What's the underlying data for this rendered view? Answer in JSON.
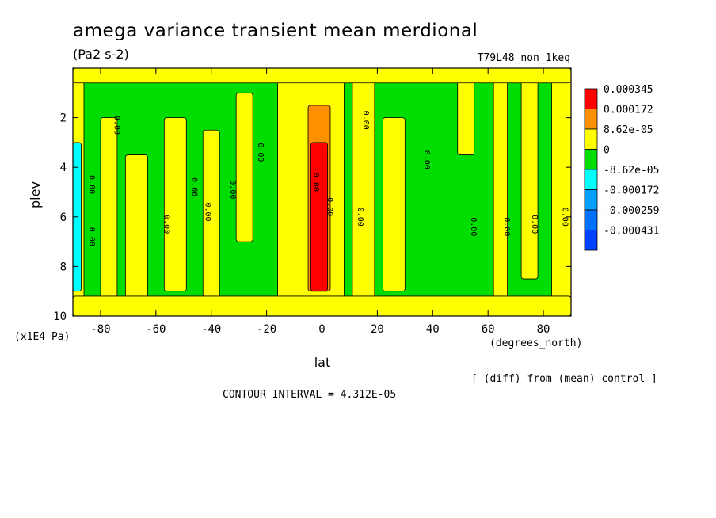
{
  "chart_data": {
    "type": "heatmap",
    "title": "amega variance transient mean merdional",
    "units": "(Pa2 s-2)",
    "run_label": "T79L48_non_1keq",
    "xlabel": "lat",
    "x_units": "(degrees_north)",
    "ylabel": "plev",
    "y_units": "(x1E4 Pa)",
    "xlim": [
      -90,
      90
    ],
    "ylim": [
      0,
      10
    ],
    "x_ticks": [
      "-80",
      "-60",
      "-40",
      "-20",
      "0",
      "20",
      "40",
      "60",
      "80"
    ],
    "x_tick_values": [
      -80,
      -60,
      -40,
      -20,
      0,
      20,
      40,
      60,
      80
    ],
    "y_ticks": [
      "2",
      "4",
      "6",
      "8",
      "10"
    ],
    "y_tick_values": [
      2,
      4,
      6,
      8,
      10
    ],
    "grid": false,
    "legend_position": "right",
    "colorbar": [
      {
        "label": "0.000345",
        "color": "#ff0000"
      },
      {
        "label": "0.000172",
        "color": "#ff9000"
      },
      {
        "label": "8.62e-05",
        "color": "#ffff00"
      },
      {
        "label": "0",
        "color": "#00dd00"
      },
      {
        "label": "-8.62e-05",
        "color": "#00ffff"
      },
      {
        "label": "-0.000172",
        "color": "#00a0ff"
      },
      {
        "label": "-0.000259",
        "color": "#0070ff"
      },
      {
        "label": "-0.000431",
        "color": "#0040ff"
      }
    ],
    "contour_interval": "CONTOUR INTERVAL = 4.312E-05",
    "diff_note": "[ (diff) from (mean) control ]",
    "contour_label": "0.00",
    "yellow_bands": [
      {
        "lat": [
          -90,
          -86
        ],
        "plev": [
          0.5,
          10
        ]
      },
      {
        "lat": [
          -80,
          -74
        ],
        "plev": [
          2,
          10
        ]
      },
      {
        "lat": [
          -71,
          -63
        ],
        "plev": [
          3.5,
          10
        ]
      },
      {
        "lat": [
          -57,
          -49
        ],
        "plev": [
          2,
          9
        ]
      },
      {
        "lat": [
          -43,
          -37
        ],
        "plev": [
          2.5,
          9.5
        ]
      },
      {
        "lat": [
          -31,
          -25
        ],
        "plev": [
          1,
          7
        ]
      },
      {
        "lat": [
          -16,
          8
        ],
        "plev": [
          0.2,
          10
        ]
      },
      {
        "lat": [
          11,
          19
        ],
        "plev": [
          0.2,
          9.5
        ]
      },
      {
        "lat": [
          22,
          30
        ],
        "plev": [
          2,
          9
        ]
      },
      {
        "lat": [
          49,
          55
        ],
        "plev": [
          0.2,
          3.5
        ]
      },
      {
        "lat": [
          62,
          67
        ],
        "plev": [
          0.2,
          9.5
        ]
      },
      {
        "lat": [
          72,
          78
        ],
        "plev": [
          0.2,
          8.5
        ]
      },
      {
        "lat": [
          83,
          90
        ],
        "plev": [
          0.2,
          10
        ]
      },
      {
        "lat": [
          -90,
          90
        ],
        "plev": [
          0,
          0.6
        ]
      },
      {
        "lat": [
          -90,
          90
        ],
        "plev": [
          9.2,
          10
        ]
      }
    ],
    "orange_region": {
      "lat": [
        -5,
        3
      ],
      "plev": [
        1.5,
        9
      ]
    },
    "red_region": {
      "lat": [
        -4,
        2
      ],
      "plev": [
        3,
        9
      ]
    },
    "blue_region": {
      "lat": [
        -90,
        -87
      ],
      "plev": [
        3,
        9
      ]
    }
  }
}
